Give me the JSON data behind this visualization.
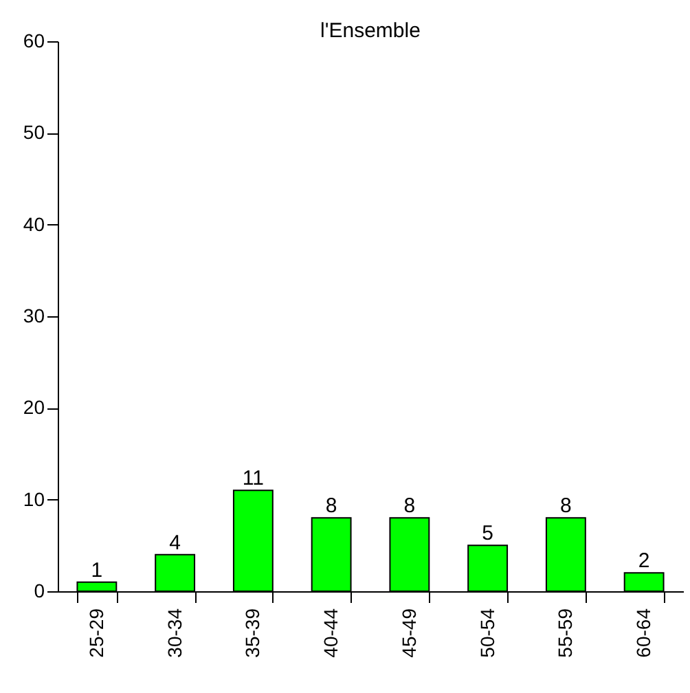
{
  "chart_data": {
    "type": "bar",
    "title": "l'Ensemble",
    "categories": [
      "25-29",
      "30-34",
      "35-39",
      "40-44",
      "45-49",
      "50-54",
      "55-59",
      "60-64"
    ],
    "values": [
      1,
      4,
      11,
      8,
      8,
      5,
      8,
      2
    ],
    "color": "#00ff00",
    "ylim": [
      0,
      60
    ],
    "yticks": [
      0,
      10,
      20,
      30,
      40,
      50,
      60
    ],
    "grid": false,
    "data_labels": true
  }
}
